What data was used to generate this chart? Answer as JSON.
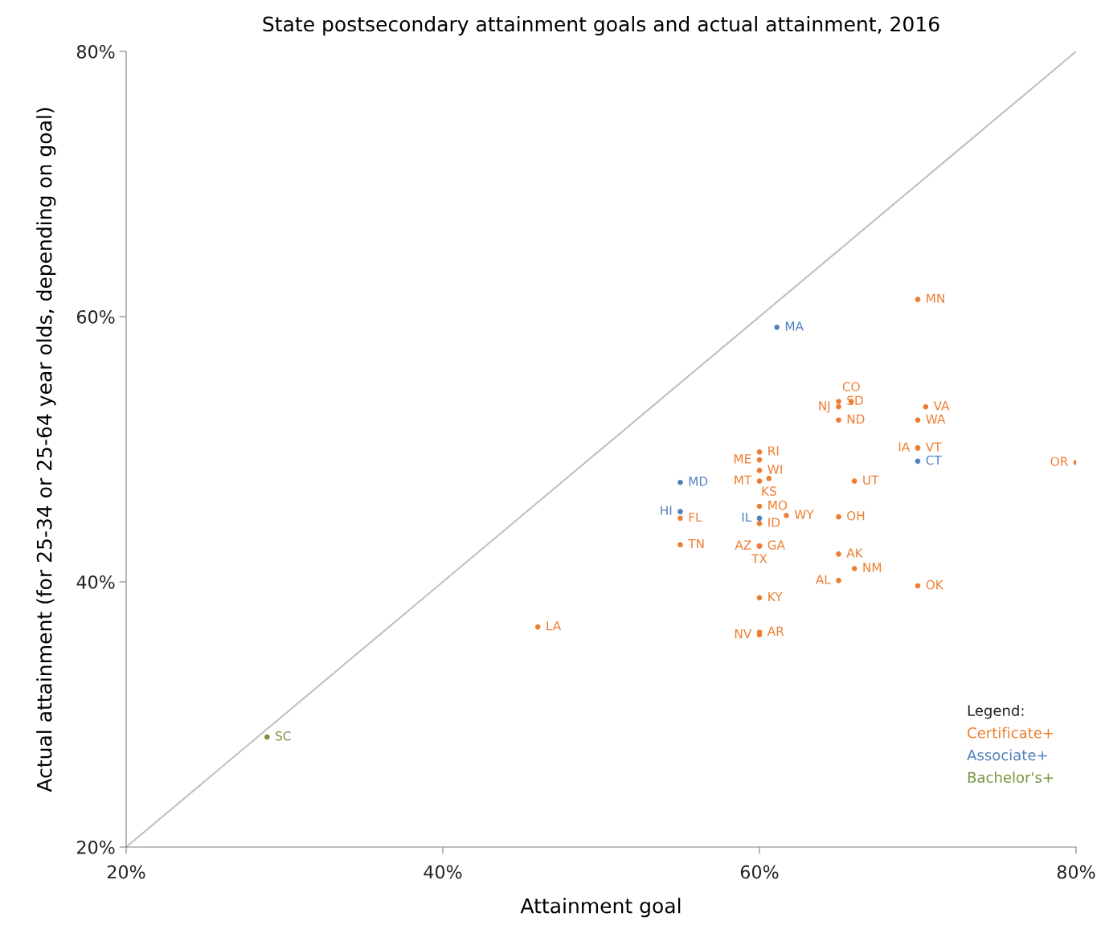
{
  "chart_data": {
    "type": "scatter",
    "title": "State postsecondary attainment goals and actual attainment, 2016",
    "xlabel": "Attainment goal",
    "ylabel": "Actual attainment (for 25-34 or 25-64 year olds, depending on goal)",
    "xlim": [
      20,
      80
    ],
    "ylim": [
      20,
      80
    ],
    "xticks": [
      {
        "value": 20,
        "label": "20%"
      },
      {
        "value": 40,
        "label": "40%"
      },
      {
        "value": 60,
        "label": "60%"
      },
      {
        "value": 80,
        "label": "80%"
      }
    ],
    "yticks": [
      {
        "value": 20,
        "label": "20%"
      },
      {
        "value": 40,
        "label": "40%"
      },
      {
        "value": 60,
        "label": "60%"
      },
      {
        "value": 80,
        "label": "80%"
      }
    ],
    "grid": false,
    "legend_title": "Legend:",
    "series": [
      {
        "type": "line",
        "color": "#bfbfbf",
        "x": [
          20,
          80
        ],
        "values": [
          20,
          80
        ],
        "line_style": "solid"
      },
      {
        "name": "Certificate+",
        "color": "#ed7d31",
        "marker": "circle",
        "x": [
          70,
          65,
          65,
          65.8,
          70.5,
          70,
          65,
          70,
          70,
          80,
          60,
          60,
          60,
          60,
          60.6,
          66,
          60,
          55,
          60,
          61.7,
          65,
          55,
          60,
          60,
          60,
          65,
          66,
          65,
          70,
          60,
          46.0,
          60,
          60
        ],
        "values": [
          61.3,
          53.6,
          53.2,
          53.6,
          53.2,
          52.2,
          52.2,
          50.1,
          50.1,
          49.0,
          49.8,
          49.2,
          48.4,
          47.6,
          47.8,
          47.6,
          45.7,
          44.8,
          44.4,
          45.0,
          44.9,
          42.8,
          42.7,
          42.7,
          42.7,
          42.1,
          41.0,
          40.1,
          39.7,
          38.8,
          36.6,
          36.2,
          36.0
        ],
        "value_labels": [
          "MN",
          "SD",
          "NJ",
          "CO",
          "VA",
          "WA",
          "ND",
          "VT",
          "IA",
          "OR",
          "RI",
          "ME",
          "WI",
          "MT",
          "KS",
          "UT",
          "MO",
          "FL",
          "ID",
          "WY",
          "OH",
          "TN",
          "GA",
          "AZ",
          "TX",
          "AK",
          "NM",
          "AL",
          "OK",
          "KY",
          "LA",
          "AR",
          "NV"
        ]
      },
      {
        "name": "Associate+",
        "color": "#4f81bd",
        "marker": "circle",
        "x": [
          61.1,
          70,
          55,
          55,
          60
        ],
        "values": [
          59.2,
          49.1,
          47.5,
          45.3,
          44.8
        ],
        "value_labels": [
          "MA",
          "CT",
          "MD",
          "HI",
          "IL"
        ]
      },
      {
        "name": "Bachelor's+",
        "color": "#77933c",
        "marker": "circle",
        "x": [
          28.9
        ],
        "values": [
          28.3
        ],
        "value_labels": [
          "SC"
        ]
      }
    ]
  }
}
